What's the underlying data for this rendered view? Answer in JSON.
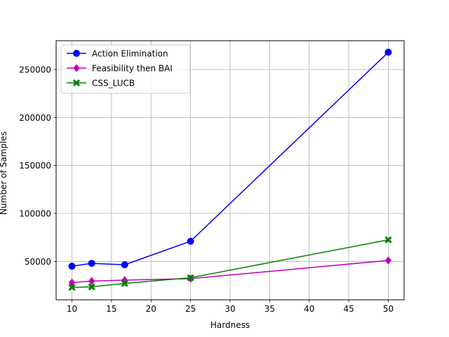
{
  "chart_data": {
    "type": "line",
    "xlabel": "Hardness",
    "ylabel": "Number of Samples",
    "xlim": [
      8,
      52
    ],
    "ylim": [
      10000,
      280000
    ],
    "xticks": [
      10,
      15,
      20,
      25,
      30,
      35,
      40,
      45,
      50
    ],
    "yticks": [
      50000,
      100000,
      150000,
      200000,
      250000
    ],
    "grid": true,
    "legend": "top-left",
    "x": [
      10,
      12.5,
      16.67,
      25,
      50
    ],
    "series": [
      {
        "name": "Action Elimination",
        "color": "#0000ff",
        "marker": "circle",
        "values": [
          45000,
          48000,
          46500,
          71000,
          268000
        ]
      },
      {
        "name": "Feasibility then BAI",
        "color": "#bf00bf",
        "marker": "diamond",
        "values": [
          28000,
          29500,
          30500,
          32000,
          51000
        ]
      },
      {
        "name": "CSS_LUCB",
        "color": "#008000",
        "marker": "x",
        "values": [
          23000,
          23500,
          27000,
          33000,
          72500
        ]
      }
    ]
  }
}
